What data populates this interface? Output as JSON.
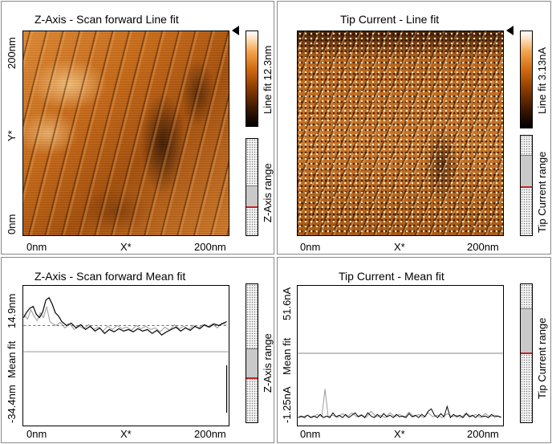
{
  "panels": {
    "z_line": {
      "title": "Z-Axis - Scan forward   Line fit",
      "y_label": "Y*",
      "y_ticks": [
        "200nm",
        "0nm"
      ],
      "x_label": "X*",
      "x_ticks": [
        "0nm",
        "200nm"
      ],
      "colorbar_label": "Line fit 12.3nm",
      "range_label": "Z-Axis range",
      "range_fill_level": 0.3
    },
    "c_line": {
      "title": "Tip Current - Line fit",
      "x_label": "X*",
      "x_ticks": [
        "0nm",
        "200nm"
      ],
      "colorbar_label": "Line fit 3.13nA",
      "range_label": "Tip Current range",
      "range_fill_level": 0.6
    },
    "z_mean": {
      "title": "Z-Axis - Scan forward   Mean fit",
      "y_ticks": [
        "14.9nm",
        "-34.4nm"
      ],
      "y_label": "Mean fit",
      "x_label": "X*",
      "x_ticks": [
        "0nm",
        "200nm"
      ],
      "range_label": "Z-Axis range"
    },
    "c_mean": {
      "title": "Tip Current - Mean fit",
      "y_ticks": [
        "51.6nA",
        "-1.25nA"
      ],
      "y_label": "Mean fit",
      "x_label": "X*",
      "x_ticks": [
        "0nm",
        "200nm"
      ],
      "range_label": "Tip Current range"
    }
  },
  "colors": {
    "accent_red": "#cc2222",
    "orange": "#c86a18"
  }
}
